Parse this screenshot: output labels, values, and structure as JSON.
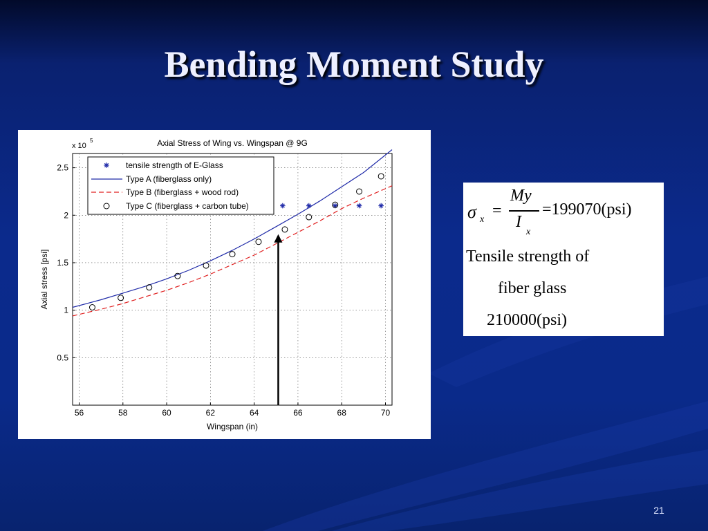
{
  "slide": {
    "title": "Bending Moment Study",
    "page_number": "21"
  },
  "equation": {
    "sigma": "σ",
    "sub_x": "x",
    "equals": "=",
    "numerator": "My",
    "denominator_I": "I",
    "denominator_sub": "x",
    "result": "=199070(psi)",
    "text_line1": "Tensile strength of",
    "text_line2": "fiber glass",
    "text_line3": "210000(psi)"
  },
  "colors": {
    "type_a": "#1f2aa8",
    "type_b": "#e02020",
    "markers_star": "#1f2aa8",
    "markers_circle": "#000000",
    "arrow": "#000000"
  },
  "chart_data": {
    "type": "line",
    "title": "Axial Stress of Wing vs. Wingspan @ 9G",
    "xlabel": "Wingspan (in)",
    "ylabel": "Axial stress [psi]",
    "y_multiplier_label": "x 10",
    "y_multiplier_exp": "5",
    "xlim": [
      55.7,
      70.3
    ],
    "ylim": [
      0,
      2.65
    ],
    "x_ticks": [
      56,
      58,
      60,
      62,
      64,
      66,
      68,
      70
    ],
    "y_ticks": [
      0.5,
      1,
      1.5,
      2,
      2.5
    ],
    "grid": true,
    "legend_position": "top-left",
    "series": [
      {
        "name": "tensile strength of E-Glass",
        "style": "star",
        "x": [
          56.6,
          57.8,
          59.1,
          60.5,
          61.7,
          62.9,
          64.2,
          65.3,
          66.5,
          67.7,
          68.8,
          69.8
        ],
        "y": [
          2.1,
          2.1,
          2.1,
          2.1,
          2.1,
          2.1,
          2.1,
          2.1,
          2.1,
          2.1,
          2.1,
          2.1
        ]
      },
      {
        "name": "Type A (fiberglass only)",
        "style": "solid",
        "x": [
          55.7,
          57,
          58,
          59,
          60,
          61,
          62,
          63,
          64,
          65,
          66,
          67,
          68,
          69,
          70.3
        ],
        "y": [
          1.03,
          1.11,
          1.18,
          1.25,
          1.33,
          1.42,
          1.52,
          1.63,
          1.75,
          1.88,
          2.01,
          2.15,
          2.3,
          2.45,
          2.69
        ]
      },
      {
        "name": "Type B (fiberglass + wood rod)",
        "style": "dashed",
        "x": [
          55.7,
          57,
          58,
          59,
          60,
          61,
          62,
          63,
          64,
          65,
          66,
          67,
          68,
          69,
          70.3
        ],
        "y": [
          0.94,
          1.01,
          1.07,
          1.14,
          1.21,
          1.29,
          1.38,
          1.48,
          1.58,
          1.7,
          1.82,
          1.94,
          2.07,
          2.18,
          2.31
        ]
      },
      {
        "name": "Type C (fiberglass + carbon tube)",
        "style": "circle",
        "x": [
          56.6,
          57.9,
          59.2,
          60.5,
          61.8,
          63.0,
          64.2,
          65.4,
          66.5,
          67.7,
          68.8,
          69.8
        ],
        "y": [
          1.03,
          1.13,
          1.24,
          1.36,
          1.47,
          1.59,
          1.72,
          1.85,
          1.98,
          2.11,
          2.25,
          2.41
        ]
      }
    ],
    "annotation": {
      "type": "arrow",
      "x": 65.1,
      "y_from": 0,
      "y_to": 1.8
    }
  }
}
